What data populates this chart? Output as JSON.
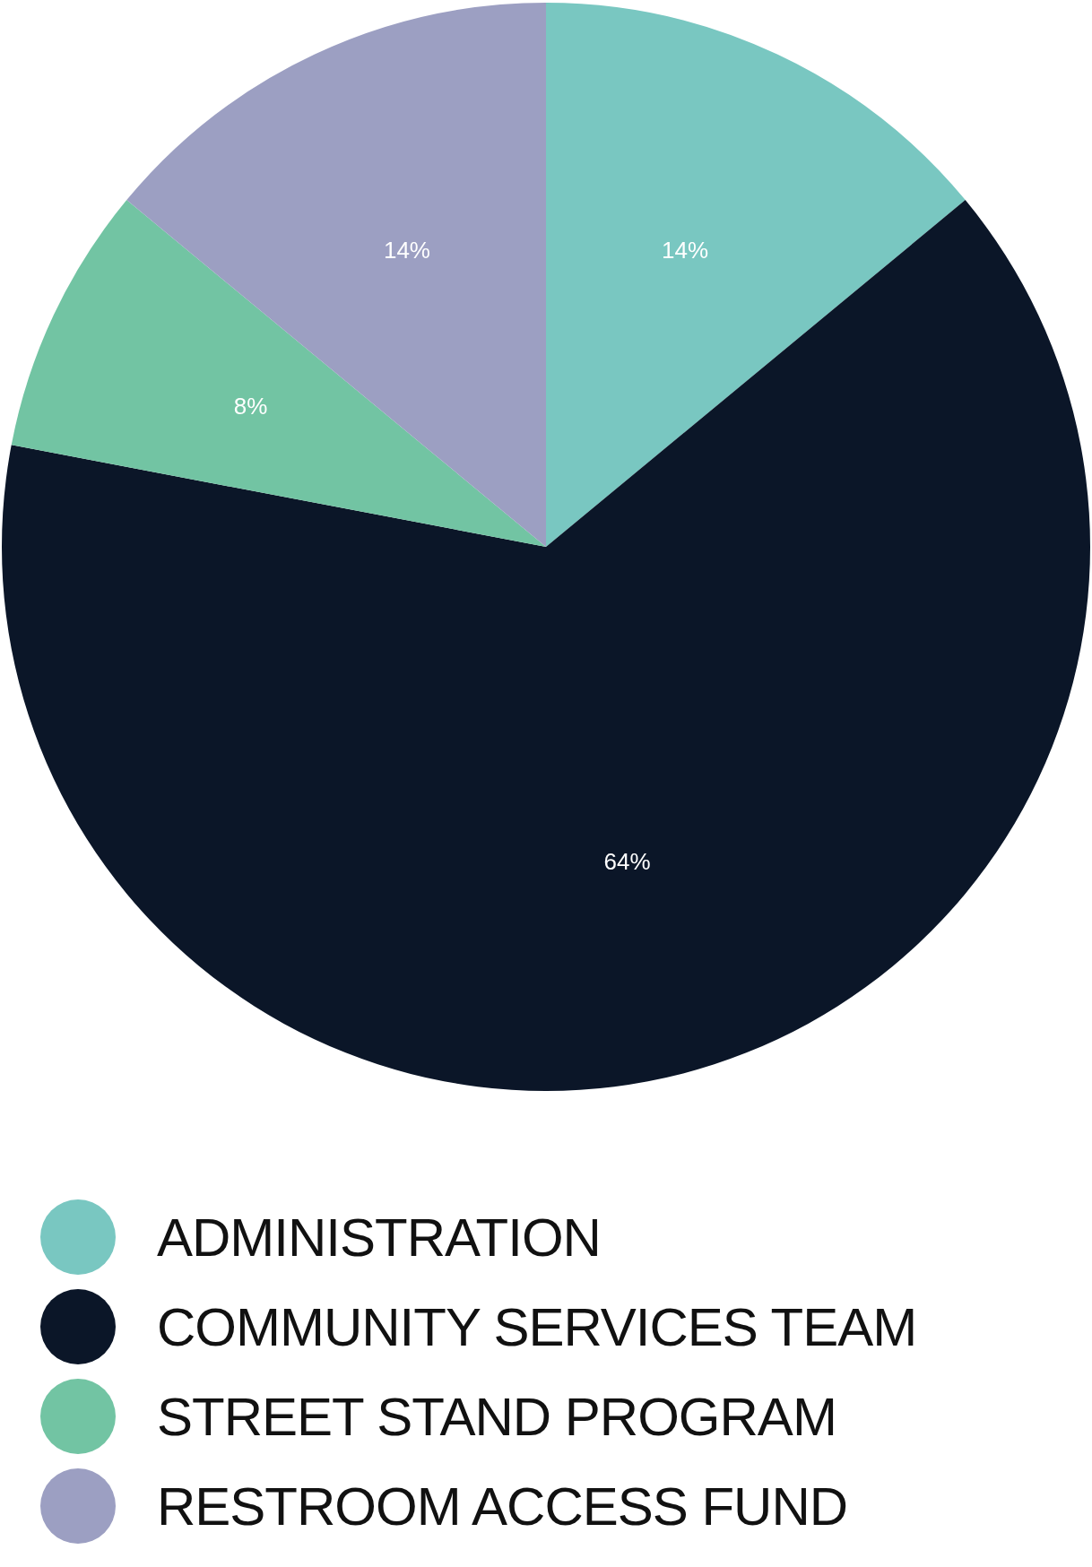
{
  "chart_data": {
    "type": "pie",
    "categories": [
      "ADMINISTRATION",
      "COMMUNITY SERVICES TEAM",
      "STREET STAND PROGRAM",
      "RESTROOM ACCESS FUND"
    ],
    "values": [
      14,
      64,
      8,
      14
    ],
    "colors": [
      "#79c7c1",
      "#0b1628",
      "#72c4a3",
      "#9c9fc2"
    ],
    "value_labels": [
      "14%",
      "64%",
      "8%",
      "14%"
    ],
    "legend": "bottom"
  }
}
